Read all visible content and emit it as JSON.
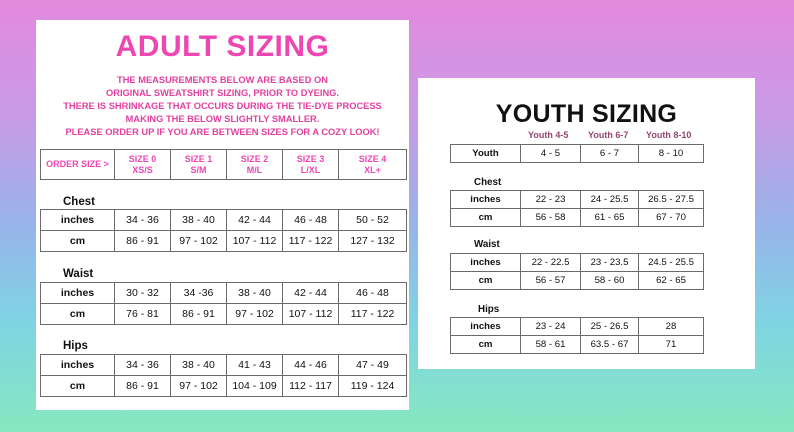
{
  "adult": {
    "title": "ADULT SIZING",
    "notes": [
      "THE MEASUREMENTS BELOW ARE BASED ON",
      "ORIGINAL SWEATSHIRT SIZING, PRIOR TO DYEING.",
      "THERE IS SHRINKAGE THAT OCCURS DURING THE TIE-DYE PROCESS",
      "MAKING THE BELOW SLIGHTLY SMALLER.",
      "PLEASE ORDER UP IF YOU ARE BETWEEN SIZES FOR A COZY LOOK!"
    ],
    "header": {
      "order_size": "ORDER SIZE >",
      "sizes": [
        {
          "l1": "SIZE 0",
          "l2": "XS/S"
        },
        {
          "l1": "SIZE 1",
          "l2": "S/M"
        },
        {
          "l1": "SIZE 2",
          "l2": "M/L"
        },
        {
          "l1": "SIZE 3",
          "l2": "L/XL"
        },
        {
          "l1": "SIZE 4",
          "l2": "XL+"
        }
      ]
    },
    "sections": [
      {
        "label": "Chest",
        "rows": [
          {
            "unit": "inches",
            "values": [
              "34 - 36",
              "38 - 40",
              "42 - 44",
              "46 - 48",
              "50 - 52"
            ]
          },
          {
            "unit": "cm",
            "values": [
              "86 - 91",
              "97 - 102",
              "107 - 112",
              "117 - 122",
              "127 - 132"
            ]
          }
        ]
      },
      {
        "label": "Waist",
        "rows": [
          {
            "unit": "inches",
            "values": [
              "30 - 32",
              "34 -36",
              "38 - 40",
              "42 - 44",
              "46 - 48"
            ]
          },
          {
            "unit": "cm",
            "values": [
              "76 - 81",
              "86 - 91",
              "97 - 102",
              "107 - 112",
              "117 - 122"
            ]
          }
        ]
      },
      {
        "label": "Hips",
        "rows": [
          {
            "unit": "inches",
            "values": [
              "34 - 36",
              "38 - 40",
              "41 - 43",
              "44 - 46",
              "47 - 49"
            ]
          },
          {
            "unit": "cm",
            "values": [
              "86 - 91",
              "97 - 102",
              "104 - 109",
              "112 - 117",
              "119 - 124"
            ]
          }
        ]
      }
    ]
  },
  "youth": {
    "title": "YOUTH SIZING",
    "col_headers": [
      "Youth 4-5",
      "Youth 6-7",
      "Youth 8-10"
    ],
    "size_row": {
      "label": "Youth",
      "values": [
        "4 - 5",
        "6 - 7",
        "8 - 10"
      ]
    },
    "sections": [
      {
        "label": "Chest",
        "rows": [
          {
            "unit": "inches",
            "values": [
              "22 - 23",
              "24 - 25.5",
              "26.5 - 27.5"
            ]
          },
          {
            "unit": "cm",
            "values": [
              "56 - 58",
              "61 - 65",
              "67 - 70"
            ]
          }
        ]
      },
      {
        "label": "Waist",
        "rows": [
          {
            "unit": "inches",
            "values": [
              "22 - 22.5",
              "23 - 23.5",
              "24.5 - 25.5"
            ]
          },
          {
            "unit": "cm",
            "values": [
              "56 - 57",
              "58 - 60",
              "62 - 65"
            ]
          }
        ]
      },
      {
        "label": "Hips",
        "rows": [
          {
            "unit": "inches",
            "values": [
              "23 - 24",
              "25 - 26.5",
              "28"
            ]
          },
          {
            "unit": "cm",
            "values": [
              "58 - 61",
              "63.5 - 67",
              "71"
            ]
          }
        ]
      }
    ]
  },
  "colors": {
    "adult_title": "#ee46b2",
    "adult_notes": "#e2409f",
    "youth_col_header": "#94456f"
  }
}
